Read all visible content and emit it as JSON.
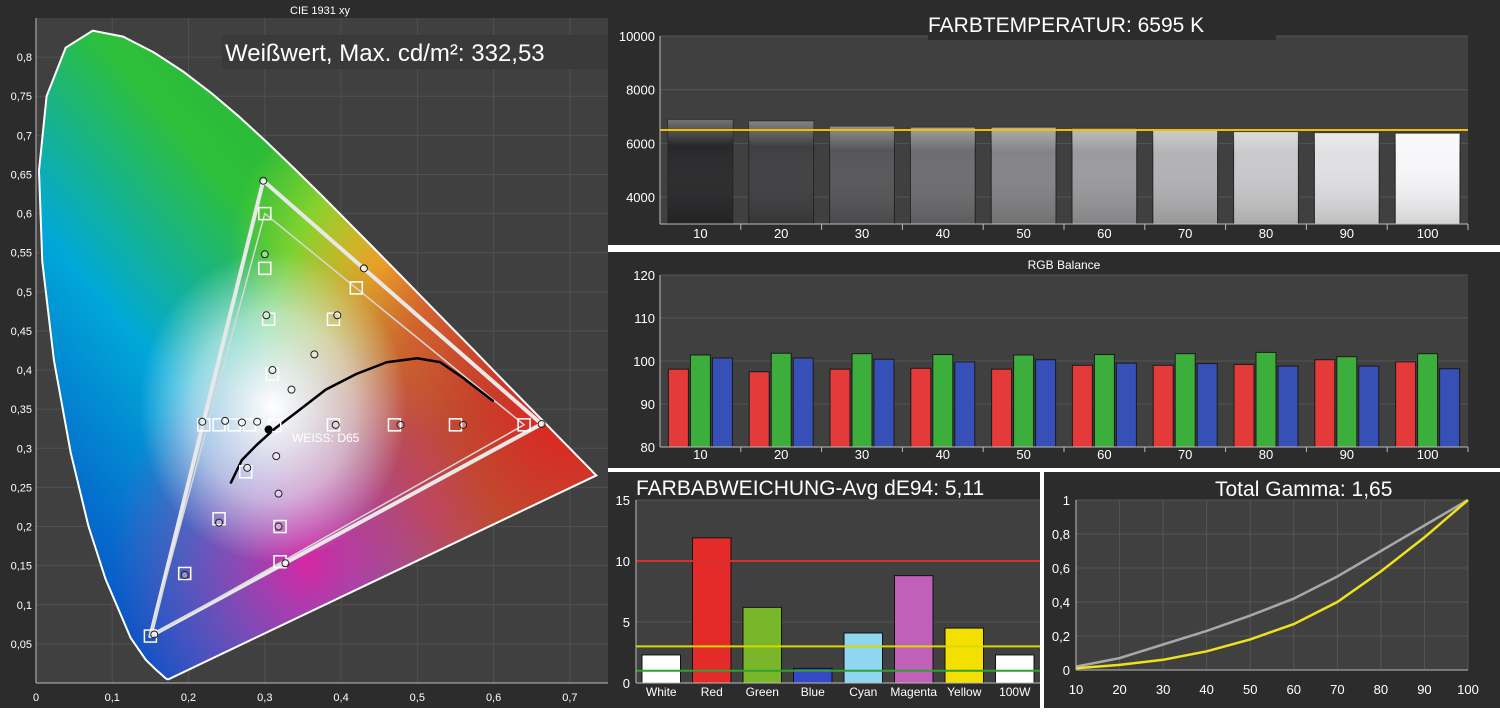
{
  "chart_data": [
    {
      "type": "scatter",
      "title": "CIE 1931 xy",
      "annotation": "Weißwert, Max. cd/m²: 332,53",
      "white_label": "WEISS: D65",
      "xlim": [
        0,
        0.75
      ],
      "ylim": [
        0,
        0.85
      ],
      "x_ticks": [
        "0",
        "0,1",
        "0,2",
        "0,3",
        "0,4",
        "0,5",
        "0,6",
        "0,7"
      ],
      "y_ticks": [
        "0,05",
        "0,1",
        "0,15",
        "0,2",
        "0,25",
        "0,3",
        "0,35",
        "0,4",
        "0,45",
        "0,5",
        "0,55",
        "0,6",
        "0,65",
        "0,7",
        "0,75",
        "0,8"
      ],
      "target_gamut": [
        [
          0.64,
          0.33
        ],
        [
          0.3,
          0.6
        ],
        [
          0.15,
          0.06
        ]
      ],
      "measured_gamut": [
        [
          0.663,
          0.331
        ],
        [
          0.298,
          0.642
        ],
        [
          0.15,
          0.06
        ]
      ],
      "target_points": [
        [
          0.3,
          0.6
        ],
        [
          0.3,
          0.53
        ],
        [
          0.305,
          0.465
        ],
        [
          0.31,
          0.395
        ],
        [
          0.42,
          0.505
        ],
        [
          0.39,
          0.465
        ],
        [
          0.22,
          0.33
        ],
        [
          0.24,
          0.33
        ],
        [
          0.26,
          0.33
        ],
        [
          0.28,
          0.33
        ],
        [
          0.313,
          0.329
        ],
        [
          0.39,
          0.33
        ],
        [
          0.47,
          0.33
        ],
        [
          0.55,
          0.33
        ],
        [
          0.64,
          0.33
        ],
        [
          0.275,
          0.27
        ],
        [
          0.24,
          0.21
        ],
        [
          0.195,
          0.14
        ],
        [
          0.15,
          0.06
        ],
        [
          0.32,
          0.2
        ],
        [
          0.32,
          0.155
        ]
      ],
      "measured_points": [
        [
          0.298,
          0.642
        ],
        [
          0.3,
          0.548
        ],
        [
          0.302,
          0.47
        ],
        [
          0.31,
          0.4
        ],
        [
          0.43,
          0.53
        ],
        [
          0.395,
          0.47
        ],
        [
          0.365,
          0.42
        ],
        [
          0.335,
          0.375
        ],
        [
          0.218,
          0.334
        ],
        [
          0.248,
          0.335
        ],
        [
          0.27,
          0.333
        ],
        [
          0.29,
          0.334
        ],
        [
          0.305,
          0.324
        ],
        [
          0.393,
          0.33
        ],
        [
          0.478,
          0.33
        ],
        [
          0.56,
          0.33
        ],
        [
          0.663,
          0.331
        ],
        [
          0.277,
          0.275
        ],
        [
          0.315,
          0.29
        ],
        [
          0.318,
          0.242
        ],
        [
          0.318,
          0.2
        ],
        [
          0.327,
          0.153
        ],
        [
          0.24,
          0.205
        ],
        [
          0.195,
          0.138
        ],
        [
          0.155,
          0.062
        ]
      ],
      "whitepoint_curve": [
        [
          0.255,
          0.255
        ],
        [
          0.27,
          0.285
        ],
        [
          0.29,
          0.305
        ],
        [
          0.313,
          0.325
        ],
        [
          0.34,
          0.345
        ],
        [
          0.38,
          0.375
        ],
        [
          0.42,
          0.395
        ],
        [
          0.46,
          0.41
        ],
        [
          0.5,
          0.415
        ],
        [
          0.53,
          0.41
        ],
        [
          0.56,
          0.39
        ],
        [
          0.6,
          0.36
        ]
      ],
      "whitepoint": [
        0.305,
        0.324
      ]
    },
    {
      "type": "bar",
      "title": "FARBTEMPERATUR: 6595 K",
      "categories": [
        "10",
        "20",
        "30",
        "40",
        "50",
        "60",
        "70",
        "80",
        "90",
        "100"
      ],
      "values": [
        6880,
        6830,
        6640,
        6600,
        6600,
        6560,
        6480,
        6440,
        6400,
        6380
      ],
      "target_line": 6500,
      "ylim": [
        3000,
        10000
      ],
      "y_ticks": [
        "4000",
        "6000",
        "8000",
        "10000"
      ]
    },
    {
      "type": "bar",
      "title": "RGB Balance",
      "categories": [
        "10",
        "20",
        "30",
        "40",
        "50",
        "60",
        "70",
        "80",
        "90",
        "100"
      ],
      "series": [
        {
          "color": "#e53a3a",
          "values": [
            98.1,
            97.5,
            98.1,
            98.3,
            98.1,
            99.0,
            99.0,
            99.2,
            100.3,
            99.8
          ]
        },
        {
          "color": "#3cae3c",
          "values": [
            101.4,
            101.8,
            101.7,
            101.5,
            101.4,
            101.5,
            101.7,
            102.0,
            101.0,
            101.7
          ]
        },
        {
          "color": "#3650b8",
          "values": [
            100.7,
            100.7,
            100.4,
            99.8,
            100.3,
            99.5,
            99.4,
            98.8,
            98.8,
            98.2
          ]
        }
      ],
      "ylim": [
        80,
        120
      ],
      "y_ticks": [
        "80",
        "90",
        "100",
        "110",
        "120"
      ]
    },
    {
      "type": "bar",
      "title": "FARBABWEICHUNG-Avg dE94: 5,11",
      "categories": [
        "White",
        "Red",
        "Green",
        "Blue",
        "Cyan",
        "Magenta",
        "Yellow",
        "100W"
      ],
      "values": [
        2.3,
        11.9,
        6.2,
        1.2,
        4.1,
        8.8,
        4.5,
        2.3
      ],
      "colors": [
        "#ffffff",
        "#e52a2a",
        "#7ab62a",
        "#3548c8",
        "#8fd6f0",
        "#c060b8",
        "#f4e000",
        "#ffffff"
      ],
      "thresholds": [
        {
          "value": 10,
          "color": "#d43030"
        },
        {
          "value": 3,
          "color": "#d8d800"
        },
        {
          "value": 1,
          "color": "#30a030"
        }
      ],
      "ylim": [
        0,
        15
      ],
      "y_ticks": [
        "0",
        "5",
        "10",
        "15"
      ]
    },
    {
      "type": "line",
      "title": "Total Gamma: 1,65",
      "x": [
        10,
        20,
        30,
        40,
        50,
        60,
        70,
        80,
        90,
        100
      ],
      "series": [
        {
          "color": "#a8a8a8",
          "values": [
            0.02,
            0.07,
            0.15,
            0.23,
            0.32,
            0.42,
            0.55,
            0.7,
            0.85,
            1.0
          ]
        },
        {
          "color": "#f0e020",
          "values": [
            0.01,
            0.03,
            0.06,
            0.11,
            0.18,
            0.27,
            0.4,
            0.58,
            0.78,
            1.0
          ]
        }
      ],
      "xlim": [
        10,
        100
      ],
      "ylim": [
        0,
        1
      ],
      "x_ticks": [
        "10",
        "20",
        "30",
        "40",
        "50",
        "60",
        "70",
        "80",
        "90",
        "100"
      ],
      "y_ticks": [
        "0",
        "0,2",
        "0,4",
        "0,6",
        "0,8",
        "1"
      ]
    }
  ]
}
